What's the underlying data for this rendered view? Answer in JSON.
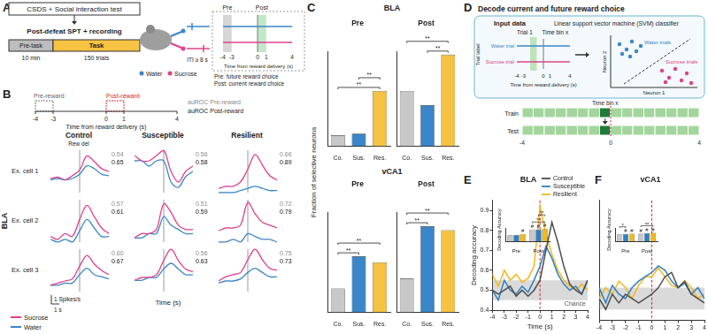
{
  "figure": {
    "panel_labels": {
      "A": "A",
      "B": "B",
      "C": "C",
      "D": "D",
      "E": "E",
      "F": "F"
    },
    "A": {
      "steps": [
        "CSDS + Social interaction test",
        "Post-defeat SPT + recording"
      ],
      "pre_task": "Pre-task",
      "task": "Task",
      "pre_task_duration": "10 min",
      "task_trials": "150 trials",
      "water": "Water",
      "sucrose": "Sucrose",
      "iti": "ITI ≥ 8 s",
      "pre": "Pre",
      "post": "Post",
      "ticks": [
        -4,
        -3,
        0,
        1,
        4
      ],
      "pre_window": [
        -4,
        -3
      ],
      "post_window": [
        0,
        1
      ],
      "axis_label": "Time from reward delivery (s)",
      "notes": [
        "Pre: future reward choice",
        "Post: current reward choice"
      ]
    },
    "B": {
      "pre": "Pre-reward",
      "post": "Post-reward",
      "ticks": [
        -4,
        -3,
        0,
        1,
        4
      ],
      "pre_window": [
        -4,
        -3
      ],
      "post_window": [
        0,
        1
      ],
      "axis_label": "Time from reward delivery (s)",
      "auroc_pre": "auROC Pre-reward",
      "auroc_post": "auROC Post-reward",
      "columns": [
        "Control",
        "Susceptible",
        "Resilient"
      ],
      "rows": [
        "Ex. cell 1",
        "Ex. cell 2",
        "Ex. cell 3"
      ],
      "region": "BLA",
      "rew_del": "Rew del",
      "xlabel": "Time (s)",
      "scale_y": "1 Spikes/s",
      "scale_x": "1 s"
    },
    "C": {
      "ylabel": "Fraction of selective neurons",
      "regions": [
        "BLA",
        "vCA1"
      ]
    },
    "D": {
      "title": "Decode current and future reward choice",
      "input": "Input data",
      "trial": "Trial 1",
      "time_bin": "Time bin x",
      "water_trial": "Water trial",
      "sucrose_trial": "Sucrose trial",
      "trial_label": "Trial label",
      "ticks": [
        -4,
        -3,
        0,
        1,
        4
      ],
      "bin_window": [
        -2,
        -1
      ],
      "axis_label": "Time from reward delivery (s)",
      "svm": "Linear support vector machine (SVM) classifier",
      "neuron2": "Neuron 2",
      "neuron1": "Neuron 1",
      "water_trials": "Water trials",
      "sucrose_trials": "Sucrose trials",
      "train": "Train",
      "test": "Test",
      "train_test_ticks": [
        -4,
        0,
        4
      ],
      "bin_width": 0.5,
      "highlight_bin": [
        -0.5,
        0
      ]
    }
  },
  "chart_data": [
    {
      "type": "line",
      "x": [
        -4,
        -3,
        -2,
        -1,
        0,
        1,
        2,
        3,
        4
      ],
      "tick_labels": false,
      "vline": 0,
      "annotations": [
        "0.54",
        "0.65"
      ],
      "series": [
        {
          "name": "Sucrose",
          "color": "#e0408a",
          "values": [
            1.0,
            1.1,
            0.9,
            1.2,
            1.6,
            2.6,
            2.2,
            1.7,
            1.5
          ]
        },
        {
          "name": "Water",
          "color": "#3a86c8",
          "values": [
            0.9,
            1.0,
            0.9,
            1.0,
            1.3,
            1.9,
            1.7,
            1.3,
            1.2
          ]
        }
      ]
    },
    {
      "type": "line",
      "x": [
        -4,
        -3,
        -2,
        -1,
        0,
        1,
        2,
        3,
        4
      ],
      "tick_labels": false,
      "vline": 0,
      "annotations": [
        "0.56",
        "0.58"
      ],
      "series": [
        {
          "name": "Sucrose",
          "color": "#e0408a",
          "values": [
            1.5,
            1.4,
            1.4,
            1.5,
            1.6,
            1.2,
            1.0,
            1.2,
            1.3
          ]
        },
        {
          "name": "Water",
          "color": "#3a86c8",
          "values": [
            1.4,
            1.4,
            1.3,
            1.4,
            1.4,
            1.0,
            0.9,
            1.1,
            1.2
          ]
        }
      ]
    },
    {
      "type": "line",
      "x": [
        -4,
        -3,
        -2,
        -1,
        0,
        1,
        2,
        3,
        4
      ],
      "tick_labels": false,
      "vline": 0,
      "annotations": [
        "0.66",
        "0.89"
      ],
      "series": [
        {
          "name": "Sucrose",
          "color": "#e0408a",
          "values": [
            1.2,
            1.3,
            1.3,
            1.5,
            2.1,
            2.8,
            2.3,
            1.8,
            1.6
          ]
        },
        {
          "name": "Water",
          "color": "#3a86c8",
          "values": [
            1.0,
            1.0,
            1.0,
            1.1,
            1.2,
            1.3,
            1.2,
            1.1,
            1.1
          ]
        }
      ]
    },
    {
      "type": "line",
      "x": [
        -4,
        -3,
        -2,
        -1,
        0,
        1,
        2,
        3,
        4
      ],
      "tick_labels": false,
      "vline": 0,
      "annotations": [
        "0.57",
        "0.61"
      ],
      "series": [
        {
          "name": "Sucrose",
          "color": "#e0408a",
          "values": [
            1.2,
            1.1,
            1.3,
            1.2,
            1.8,
            2.3,
            1.9,
            1.5,
            1.3
          ]
        },
        {
          "name": "Water",
          "color": "#3a86c8",
          "values": [
            1.1,
            1.0,
            1.1,
            1.0,
            1.4,
            1.8,
            1.5,
            1.2,
            1.2
          ]
        }
      ]
    },
    {
      "type": "line",
      "x": [
        -4,
        -3,
        -2,
        -1,
        0,
        1,
        2,
        3,
        4
      ],
      "tick_labels": false,
      "vline": 0,
      "annotations": [
        "0.51",
        "0.59"
      ],
      "series": [
        {
          "name": "Sucrose",
          "color": "#e0408a",
          "values": [
            0.6,
            0.7,
            0.7,
            0.8,
            1.4,
            1.2,
            0.9,
            0.8,
            0.8
          ]
        },
        {
          "name": "Water",
          "color": "#3a86c8",
          "values": [
            0.6,
            0.6,
            0.7,
            0.7,
            1.1,
            0.9,
            0.8,
            0.7,
            0.7
          ]
        }
      ]
    },
    {
      "type": "line",
      "x": [
        -4,
        -3,
        -2,
        -1,
        0,
        1,
        2,
        3,
        4
      ],
      "tick_labels": false,
      "vline": 0,
      "annotations": [
        "0.72",
        "0.79"
      ],
      "series": [
        {
          "name": "Sucrose",
          "color": "#e0408a",
          "values": [
            1.4,
            1.5,
            1.5,
            1.6,
            2.4,
            2.0,
            1.7,
            1.6,
            1.5
          ]
        },
        {
          "name": "Water",
          "color": "#3a86c8",
          "values": [
            1.0,
            1.0,
            1.1,
            1.0,
            1.3,
            1.2,
            1.1,
            1.1,
            1.0
          ]
        }
      ]
    },
    {
      "type": "line",
      "x": [
        -4,
        -3,
        -2,
        -1,
        0,
        1,
        2,
        3,
        4
      ],
      "tick_labels": false,
      "vline": 0,
      "annotations": [
        "0.60",
        "0.67"
      ],
      "series": [
        {
          "name": "Sucrose",
          "color": "#e0408a",
          "values": [
            0.8,
            0.9,
            1.0,
            1.1,
            1.7,
            2.2,
            1.8,
            1.5,
            1.3
          ]
        },
        {
          "name": "Water",
          "color": "#3a86c8",
          "values": [
            0.8,
            0.8,
            0.9,
            0.9,
            1.3,
            1.6,
            1.3,
            1.2,
            1.1
          ]
        }
      ]
    },
    {
      "type": "line",
      "x": [
        -4,
        -3,
        -2,
        -1,
        0,
        1,
        2,
        3,
        4
      ],
      "tick_labels": false,
      "vline": 0,
      "annotations": [
        "0.56",
        "0.63"
      ],
      "series": [
        {
          "name": "Sucrose",
          "color": "#e0408a",
          "values": [
            0.9,
            1.0,
            1.0,
            1.1,
            1.6,
            2.0,
            1.6,
            1.3,
            1.2
          ]
        },
        {
          "name": "Water",
          "color": "#3a86c8",
          "values": [
            0.9,
            0.9,
            1.0,
            1.0,
            1.3,
            1.5,
            1.3,
            1.1,
            1.1
          ]
        }
      ]
    },
    {
      "type": "line",
      "x": [
        -4,
        -3,
        -2,
        -1,
        0,
        1,
        2,
        3,
        4
      ],
      "tick_labels": false,
      "vline": 0,
      "annotations": [
        "0.75",
        "0.73"
      ],
      "series": [
        {
          "name": "Sucrose",
          "color": "#e0408a",
          "values": [
            1.0,
            1.2,
            1.3,
            1.4,
            2.0,
            2.5,
            2.0,
            1.6,
            1.5
          ]
        },
        {
          "name": "Water",
          "color": "#3a86c8",
          "values": [
            0.9,
            1.0,
            1.0,
            1.1,
            1.4,
            1.6,
            1.4,
            1.2,
            1.2
          ]
        }
      ]
    },
    {
      "type": "bar",
      "title": "Pre",
      "categories": [
        "Co.",
        "Sus.",
        "Res."
      ],
      "values": [
        0.07,
        0.08,
        0.35
      ],
      "colors": [
        "#c8c8c8",
        "#3a86c8",
        "#f5c242"
      ],
      "ylim": [
        0,
        0.6
      ],
      "tick_labels": "x",
      "significance": [
        {
          "pair": [
            "Co.",
            "Res."
          ],
          "label": "**"
        },
        {
          "pair": [
            "Sus.",
            "Res."
          ],
          "label": "**"
        }
      ]
    },
    {
      "type": "bar",
      "title": "Post",
      "categories": [
        "Co.",
        "Sus.",
        "Res."
      ],
      "values": [
        0.35,
        0.26,
        0.58
      ],
      "colors": [
        "#c8c8c8",
        "#3a86c8",
        "#f5c242"
      ],
      "ylim": [
        0,
        0.6
      ],
      "tick_labels": "x",
      "significance": [
        {
          "pair": [
            "Sus.",
            "Res."
          ],
          "label": "**"
        },
        {
          "pair": [
            "Co.",
            "Res."
          ],
          "label": "**"
        }
      ]
    },
    {
      "type": "bar",
      "title": "Pre",
      "categories": [
        "Co.",
        "Sus.",
        "Res."
      ],
      "values": [
        0.12,
        0.28,
        0.25
      ],
      "colors": [
        "#c8c8c8",
        "#3a86c8",
        "#f5c242"
      ],
      "ylim": [
        0,
        0.5
      ],
      "tick_labels": "x",
      "significance": [
        {
          "pair": [
            "Co.",
            "Sus."
          ],
          "label": "**"
        },
        {
          "pair": [
            "Co.",
            "Res."
          ],
          "label": "**"
        }
      ]
    },
    {
      "type": "bar",
      "title": "Post",
      "categories": [
        "Co.",
        "Sus.",
        "Res."
      ],
      "values": [
        0.17,
        0.43,
        0.41
      ],
      "colors": [
        "#c8c8c8",
        "#3a86c8",
        "#f5c242"
      ],
      "ylim": [
        0,
        0.5
      ],
      "tick_labels": "x",
      "significance": [
        {
          "pair": [
            "Co.",
            "Sus."
          ],
          "label": "**"
        },
        {
          "pair": [
            "Co.",
            "Res."
          ],
          "label": "**"
        }
      ]
    },
    {
      "type": "line",
      "title": "BLA",
      "xlabel": "Time (s)",
      "ylabel": "Decoding accuracy",
      "legend": "upper right",
      "x": [
        -4,
        -3.5,
        -3,
        -2.5,
        -2,
        -1.5,
        -1,
        -0.5,
        0,
        0.5,
        1,
        1.5,
        2,
        2.5,
        3,
        3.5,
        4
      ],
      "xlim": [
        -4,
        4
      ],
      "xticks": [
        -4,
        -3,
        -2,
        -1,
        0,
        1,
        2,
        3,
        4
      ],
      "ylim": [
        0.4,
        0.95
      ],
      "yticks": [
        0.4,
        0.5,
        0.6,
        0.7,
        0.8,
        0.9
      ],
      "chance_band": [
        0.45,
        0.55
      ],
      "chance_label": "Chance",
      "vline": 0,
      "series": [
        {
          "name": "Control",
          "color": "#4d4d4d",
          "values": [
            0.5,
            0.48,
            0.5,
            0.52,
            0.47,
            0.5,
            0.47,
            0.5,
            0.55,
            0.7,
            0.84,
            0.74,
            0.62,
            0.53,
            0.5,
            0.48,
            0.55
          ]
        },
        {
          "name": "Susceptible",
          "color": "#2f7fc1",
          "values": [
            0.5,
            0.45,
            0.55,
            0.5,
            0.48,
            0.52,
            0.49,
            0.55,
            0.62,
            0.72,
            0.66,
            0.58,
            0.53,
            0.5,
            0.52,
            0.48,
            0.55
          ]
        },
        {
          "name": "Resilient",
          "color": "#f2b81d",
          "values": [
            0.58,
            0.52,
            0.6,
            0.55,
            0.58,
            0.54,
            0.56,
            0.62,
            0.92,
            0.78,
            0.68,
            0.6,
            0.55,
            0.52,
            0.5,
            0.53,
            0.5
          ]
        }
      ]
    },
    {
      "type": "bar",
      "categories": [
        "Pre",
        "Post"
      ],
      "ylabel": "Decoding Accuracy",
      "ylim": [
        0,
        1
      ],
      "tick_labels": "x",
      "series": [
        {
          "name": "Control",
          "color": "#c8c8c8",
          "values": [
            0.45,
            0.88
          ],
          "marks": [
            null,
            "#"
          ]
        },
        {
          "name": "Susceptible",
          "color": "#2f7fc1",
          "values": [
            0.47,
            0.89
          ],
          "marks": [
            null,
            "#"
          ]
        },
        {
          "name": "Resilient",
          "color": "#f2b81d",
          "values": [
            0.55,
            0.92
          ],
          "marks": [
            "#",
            "#"
          ]
        }
      ],
      "significance": [
        {
          "category": "Post",
          "pair": [
            "Control",
            "Resilient"
          ],
          "label": "**"
        },
        {
          "category": "Post",
          "pair": [
            "Susceptible",
            "Resilient"
          ],
          "label": "**"
        }
      ]
    },
    {
      "type": "line",
      "title": "vCA1",
      "tick_labels": "x",
      "x": [
        -4,
        -3.5,
        -3,
        -2.5,
        -2,
        -1.5,
        -1,
        -0.5,
        0,
        0.5,
        1,
        1.5,
        2,
        2.5,
        3,
        3.5,
        4
      ],
      "xlim": [
        -4,
        4
      ],
      "xticks": [
        -4,
        -3,
        -2,
        -1,
        0,
        1,
        2,
        3,
        4
      ],
      "ylim": [
        0.4,
        0.95
      ],
      "chance_band": [
        0.45,
        0.55
      ],
      "vline": 0,
      "series": [
        {
          "name": "Control",
          "color": "#4d4d4d",
          "values": [
            0.5,
            0.45,
            0.52,
            0.48,
            0.52,
            0.5,
            0.48,
            0.5,
            0.52,
            0.55,
            0.6,
            0.62,
            0.55,
            0.58,
            0.52,
            0.5,
            0.48
          ]
        },
        {
          "name": "Susceptible",
          "color": "#2f7fc1",
          "values": [
            0.55,
            0.48,
            0.56,
            0.52,
            0.5,
            0.55,
            0.58,
            0.6,
            0.62,
            0.65,
            0.63,
            0.58,
            0.55,
            0.57,
            0.52,
            0.55,
            0.5
          ]
        },
        {
          "name": "Resilient",
          "color": "#f2b81d",
          "values": [
            0.5,
            0.55,
            0.52,
            0.58,
            0.55,
            0.5,
            0.56,
            0.6,
            0.6,
            0.64,
            0.6,
            0.56,
            0.55,
            0.58,
            0.55,
            0.5,
            0.52
          ]
        }
      ]
    },
    {
      "type": "bar",
      "categories": [
        "Pre",
        "Post"
      ],
      "ylabel": "Decoding Accuracy",
      "ylim": [
        0,
        1
      ],
      "tick_labels": "x",
      "series": [
        {
          "name": "Control",
          "color": "#c8c8c8",
          "values": [
            0.52,
            0.57
          ],
          "marks": [
            null,
            "#"
          ]
        },
        {
          "name": "Susceptible",
          "color": "#2f7fc1",
          "values": [
            0.55,
            0.61
          ],
          "marks": [
            "#",
            "#"
          ]
        },
        {
          "name": "Resilient",
          "color": "#f2b81d",
          "values": [
            0.56,
            0.64
          ],
          "marks": [
            "#",
            "#"
          ]
        }
      ],
      "significance": [
        {
          "category": "Pre",
          "pair": [
            "Control",
            "Susceptible"
          ],
          "label": "*"
        },
        {
          "category": "Post",
          "pair": [
            "Control",
            "Resilient"
          ],
          "label": "**"
        }
      ]
    }
  ]
}
